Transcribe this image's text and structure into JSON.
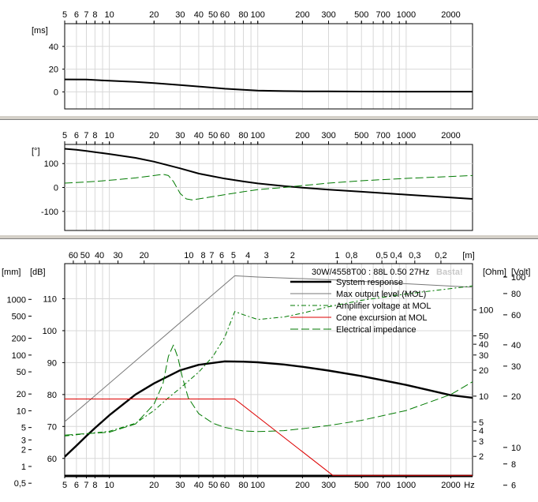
{
  "chart_data": [
    {
      "type": "line",
      "name": "group-delay",
      "xscale": "log",
      "xlim": [
        5,
        2800
      ],
      "ylim": [
        -15,
        60
      ],
      "ylabel": "[ms]",
      "x_ticks": [
        "5",
        "6",
        "7",
        "8",
        "10",
        "20",
        "30",
        "40",
        "50",
        "60",
        "80",
        "100",
        "200",
        "300",
        "500",
        "700",
        "1000",
        "2000"
      ],
      "y_ticks": [
        "40",
        "20",
        "0"
      ],
      "series": [
        {
          "name": "Group delay",
          "color": "#000000",
          "x": [
            5,
            7,
            10,
            15,
            20,
            30,
            40,
            60,
            80,
            100,
            150,
            200,
            300,
            500,
            1000,
            2800
          ],
          "y": [
            11,
            10.8,
            9.8,
            8.8,
            7.8,
            6,
            4.7,
            2.8,
            1.8,
            1.2,
            0.7,
            0.5,
            0.4,
            0.3,
            0.2,
            0.2
          ]
        }
      ]
    },
    {
      "type": "line",
      "name": "phase",
      "xscale": "log",
      "xlim": [
        5,
        2800
      ],
      "ylim": [
        -180,
        180
      ],
      "ylabel": "[°]",
      "x_ticks": [
        "5",
        "6",
        "7",
        "8",
        "10",
        "20",
        "30",
        "40",
        "50",
        "60",
        "80",
        "100",
        "200",
        "300",
        "500",
        "700",
        "1000",
        "2000"
      ],
      "y_ticks": [
        "100",
        "0",
        "-100"
      ],
      "series": [
        {
          "name": "Phase",
          "color": "#000000",
          "x": [
            5,
            6,
            7,
            8,
            10,
            15,
            20,
            30,
            40,
            60,
            80,
            100,
            150,
            200,
            300,
            500,
            1000,
            2000,
            2800
          ],
          "y": [
            162,
            158,
            153,
            148,
            140,
            124,
            108,
            80,
            58,
            37,
            25,
            17,
            6,
            -1,
            -9,
            -18,
            -30,
            -42,
            -48
          ]
        },
        {
          "name": "Phase (impedance)",
          "color": "#007a00",
          "dash": "10,4",
          "x": [
            5,
            8,
            10,
            15,
            20,
            23,
            25,
            27,
            30,
            33,
            36,
            40,
            50,
            60,
            80,
            100,
            150,
            200,
            300,
            500,
            1000,
            2000,
            2800
          ],
          "y": [
            18,
            25,
            30,
            40,
            50,
            55,
            50,
            25,
            -25,
            -48,
            -52,
            -48,
            -38,
            -30,
            -18,
            -9,
            0,
            8,
            18,
            28,
            38,
            46,
            50
          ]
        }
      ]
    },
    {
      "type": "line",
      "name": "system-response",
      "xscale": "log",
      "xlim": [
        5,
        2800
      ],
      "ylim": [
        54.5,
        121
      ],
      "x_ticks": [
        "5",
        "6",
        "7",
        "8",
        "10",
        "20",
        "30",
        "40",
        "50",
        "60",
        "80",
        "100",
        "200",
        "300",
        "500",
        "700",
        "1000",
        "2000"
      ],
      "x_unit": "Hz",
      "y_left_labels": [
        "110",
        "100",
        "90",
        "80",
        "70",
        "60"
      ],
      "y_left_unit": "[dB]",
      "mm_labels": [
        "1000",
        "500",
        "200",
        "100",
        "50",
        "20",
        "10",
        "5",
        "3",
        "2",
        "1",
        "0,5"
      ],
      "mm_unit": "[mm]",
      "m_labels": [
        "60",
        "50",
        "40",
        "30",
        "20",
        "10",
        "8",
        "7",
        "6",
        "5",
        "4",
        "3",
        "2",
        "1",
        "0,8",
        "0,5",
        "0,4",
        "0,3",
        "0,2"
      ],
      "m_unit": "[m]",
      "ohm_labels": [
        "100",
        "50",
        "40",
        "30",
        "20",
        "10",
        "5",
        "4",
        "3",
        "2"
      ],
      "ohm_unit": "[Ohm]",
      "volt_labels": [
        "100",
        "80",
        "60",
        "40",
        "30",
        "20",
        "10",
        "8",
        "6"
      ],
      "volt_unit": "[Volt]",
      "header": "30W/4558T00 : 88L 0.50 27Hz",
      "watermark": "Basta!",
      "legend": [
        {
          "label": "System response",
          "color": "#000000",
          "dash": "",
          "width": 2.4
        },
        {
          "label": "Max output level (MOL)",
          "color": "#777777",
          "dash": "",
          "width": 1
        },
        {
          "label": "Amplifier voltage at MOL",
          "color": "#007a00",
          "dash": "6,3,2,3",
          "width": 1
        },
        {
          "label": "Cone excursion at MOL",
          "color": "#dd0000",
          "dash": "",
          "width": 1
        },
        {
          "label": "Electrical impedance",
          "color": "#007a00",
          "dash": "10,4",
          "width": 1
        }
      ],
      "series": [
        {
          "name": "System response",
          "color": "#000000",
          "width": 2.4,
          "x": [
            5,
            6,
            7,
            8,
            10,
            15,
            20,
            30,
            40,
            60,
            80,
            100,
            150,
            200,
            300,
            500,
            1000,
            2000,
            2800
          ],
          "y": [
            60.5,
            64,
            67,
            69.5,
            73.5,
            80,
            83.5,
            87.6,
            89.3,
            90.4,
            90.3,
            90.1,
            89.4,
            88.7,
            87.5,
            85.8,
            83,
            79.8,
            79
          ]
        },
        {
          "name": "Max output level (MOL)",
          "color": "#777777",
          "width": 1,
          "x": [
            5,
            70,
            100,
            300,
            2800
          ],
          "y": [
            71.5,
            117.2,
            116.8,
            116,
            113.6
          ]
        },
        {
          "name": "Amplifier voltage at MOL",
          "color": "#007a00",
          "dash": "6,3,2,3",
          "width": 1,
          "x": [
            5,
            10,
            15,
            20,
            25,
            30,
            40,
            50,
            60,
            70,
            80,
            100,
            150,
            200,
            300,
            500,
            1000,
            2800
          ],
          "y": [
            67,
            68.5,
            71,
            75,
            79,
            82,
            87,
            92,
            98,
            106,
            105,
            103.5,
            104.3,
            105.5,
            107.5,
            109.5,
            111.5,
            114
          ]
        },
        {
          "name": "Cone excursion at MOL",
          "color": "#dd0000",
          "width": 1,
          "x": [
            5,
            70,
            320,
            2800
          ],
          "y": [
            78.6,
            78.6,
            54.7,
            54.7
          ]
        },
        {
          "name": "Electrical impedance",
          "color": "#007a00",
          "dash": "10,4",
          "width": 1,
          "x": [
            5,
            10,
            15,
            20,
            23,
            25,
            27,
            29,
            31,
            34,
            40,
            50,
            60,
            80,
            100,
            150,
            200,
            300,
            500,
            1000,
            2000,
            2800
          ],
          "y": [
            67.3,
            68.2,
            70.8,
            77,
            83.5,
            92,
            95.5,
            91.5,
            85.5,
            79,
            74,
            71,
            69.7,
            68.6,
            68.4,
            68.7,
            69.3,
            70.3,
            71.9,
            75,
            80,
            84
          ]
        }
      ]
    }
  ]
}
